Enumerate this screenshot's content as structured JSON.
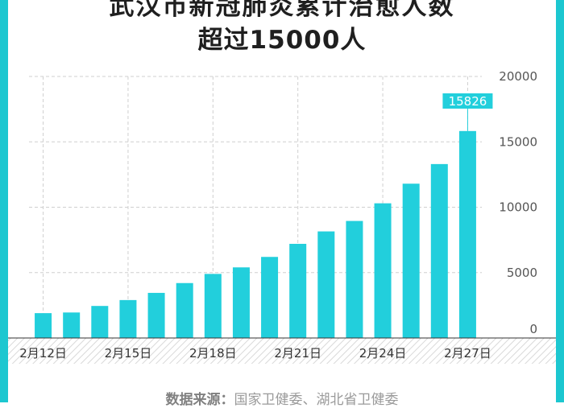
{
  "title": {
    "line1": "武汉市新冠肺炎累计治愈人数",
    "line2": "超过15000人"
  },
  "source": {
    "label": "数据来源：",
    "text": "国家卫健委、湖北省卫健委"
  },
  "colors": {
    "bar": "#22cfdc",
    "frame": "#1cc7d0",
    "grid": "#cfcfcf",
    "axis_text": "#555555",
    "highlight_label_bg": "#22cfdc",
    "highlight_label_text": "#ffffff"
  },
  "chart_data": {
    "type": "bar",
    "categories": [
      "2月12日",
      "2月13日",
      "2月14日",
      "2月15日",
      "2月16日",
      "2月17日",
      "2月18日",
      "2月19日",
      "2月20日",
      "2月21日",
      "2月22日",
      "2月23日",
      "2月24日",
      "2月25日",
      "2月26日",
      "2月27日"
    ],
    "x_tick_labels": [
      "2月12日",
      "",
      "",
      "2月15日",
      "",
      "",
      "2月18日",
      "",
      "",
      "2月21日",
      "",
      "",
      "2月24日",
      "",
      "",
      "2月27日"
    ],
    "values": [
      1900,
      1950,
      2450,
      2900,
      3450,
      4200,
      4900,
      5400,
      6200,
      7200,
      8150,
      8950,
      10300,
      11800,
      13300,
      15826
    ],
    "ylim": [
      0,
      20000
    ],
    "yticks": [
      0,
      5000,
      10000,
      15000,
      20000
    ],
    "y_axis_side": "right",
    "grid": true,
    "highlight": {
      "index": 15,
      "label": "15826"
    }
  }
}
